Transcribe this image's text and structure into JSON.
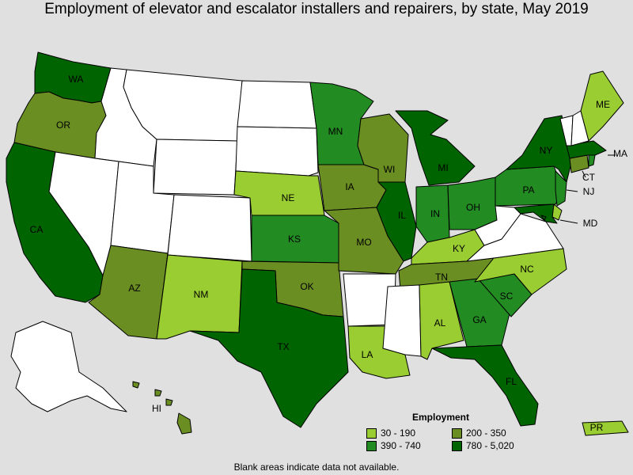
{
  "title": "Employment of elevator and escalator installers and repairers, by state, May 2019",
  "footnote": "Blank areas indicate data not available.",
  "legend": {
    "title": "Employment",
    "items": [
      {
        "label": "30 - 190",
        "color": "#9acd32"
      },
      {
        "label": "200 - 350",
        "color": "#6b8e23"
      },
      {
        "label": "390 - 740",
        "color": "#228b22"
      },
      {
        "label": "780 - 5,020",
        "color": "#006400"
      }
    ]
  },
  "colors": {
    "background": "#e0e0e0",
    "no_data": "#ffffff",
    "c1": "#9acd32",
    "c2": "#6b8e23",
    "c3": "#228b22",
    "c4": "#006400"
  },
  "state_labels": {
    "WA": "WA",
    "OR": "OR",
    "CA": "CA",
    "AZ": "AZ",
    "NM": "NM",
    "TX": "TX",
    "OK": "OK",
    "KS": "KS",
    "NE": "NE",
    "MN": "MN",
    "IA": "IA",
    "MO": "MO",
    "WI": "WI",
    "IL": "IL",
    "MI": "MI",
    "IN": "IN",
    "OH": "OH",
    "KY": "KY",
    "TN": "TN",
    "AL": "AL",
    "GA": "GA",
    "FL": "FL",
    "SC": "SC",
    "NC": "NC",
    "PA": "PA",
    "NY": "NY",
    "ME": "ME",
    "MA": "MA",
    "CT": "CT",
    "NJ": "NJ",
    "MD": "MD",
    "LA": "LA",
    "HI": "HI",
    "PR": "PR"
  },
  "state_bins": {
    "WA": 4,
    "OR": 2,
    "CA": 4,
    "AZ": 2,
    "NM": 1,
    "TX": 4,
    "OK": 2,
    "KS": 3,
    "NE": 1,
    "MN": 3,
    "IA": 2,
    "MO": 2,
    "WI": 2,
    "IL": 4,
    "MI": 4,
    "IN": 3,
    "OH": 3,
    "KY": 1,
    "TN": 2,
    "AL": 1,
    "GA": 3,
    "FL": 4,
    "SC": 3,
    "NC": 1,
    "PA": 3,
    "NY": 4,
    "ME": 1,
    "MA": 4,
    "CT": 2,
    "NJ": 3,
    "MD": 4,
    "LA": 1,
    "HI": 2,
    "PR": 1,
    "RI": 3,
    "DE": 1,
    "DC": 4,
    "VA": 0,
    "WV": 0
  }
}
